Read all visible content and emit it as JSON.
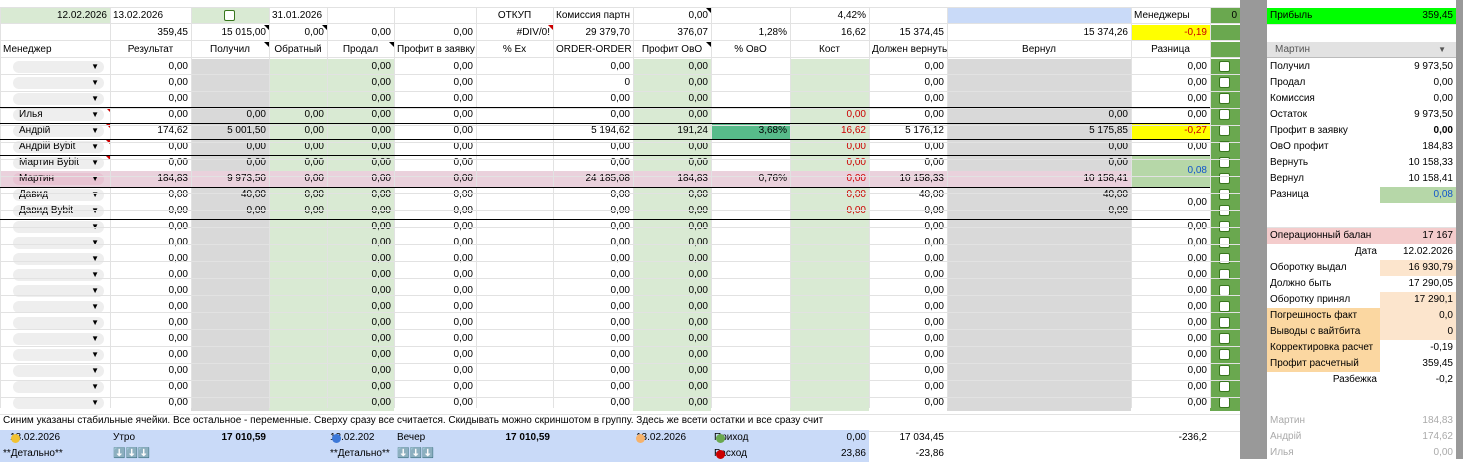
{
  "top_row": {
    "date1": "12.02.2026",
    "date2": "13.02.2026",
    "date3": "31.01.2026",
    "otkup": "ОТКУП",
    "commission_label": "Комиссия партн",
    "commission_value": "0,00",
    "percent": "4,42%",
    "managers_label": "Менеджеры",
    "managers_value": "0",
    "profit_label": "Прибыль",
    "profit_value": "359,45"
  },
  "totals_row": [
    "359,45",
    "15 015,00",
    "0,00",
    "0,00",
    "0,00",
    "#DIV/0!",
    "29 379,70",
    "376,07",
    "1,28%",
    "16,62",
    "15 374,45",
    "15 374,26",
    "-0,19"
  ],
  "headers": [
    "Менеджер",
    "Результат",
    "Получил",
    "Обратный",
    "Продал",
    "Профит в заявку",
    "% Ex",
    "ORDER-ORDER",
    "Профит ОвО",
    "% ОвО",
    "Кост",
    "Должен вернуть",
    "Вернул",
    "Разница"
  ],
  "rows": [
    {
      "name": "",
      "res": "0,00",
      "pol": "",
      "obr": "",
      "prod": "0,00",
      "prof": "0,00",
      "oo": "0,00",
      "poo": "0,00",
      "pct": "",
      "kost": "",
      "dv": "0,00",
      "vern": "",
      "raz": "0,00"
    },
    {
      "name": "",
      "res": "0,00",
      "pol": "",
      "obr": "",
      "prod": "0,00",
      "prof": "0,00",
      "oo": "0",
      "poo": "0,00",
      "pct": "",
      "kost": "",
      "dv": "0,00",
      "vern": "",
      "raz": "0,00"
    },
    {
      "name": "",
      "res": "0,00",
      "pol": "",
      "obr": "",
      "prod": "0,00",
      "prof": "0,00",
      "oo": "0,00",
      "poo": "0,00",
      "pct": "",
      "kost": "",
      "dv": "0,00",
      "vern": "",
      "raz": "0,00"
    },
    {
      "name": "Илья",
      "res": "0,00",
      "pol": "0,00",
      "obr": "0,00",
      "prod": "0,00",
      "prof": "0,00",
      "oo": "0,00",
      "poo": "0,00",
      "pct": "",
      "kost": "0,00",
      "dv": "0,00",
      "vern": "0,00",
      "raz": "0,00"
    },
    {
      "name": "Андрій",
      "res": "174,62",
      "pol": "5 001,50",
      "obr": "0,00",
      "prod": "0,00",
      "prof": "0,00",
      "oo": "5 194,62",
      "poo": "191,24",
      "pct": "3,68%",
      "kost": "16,62",
      "dv": "5 176,12",
      "vern": "5 175,85",
      "raz": "-0,27"
    },
    {
      "name": "Андрій Bybit",
      "res": "0,00",
      "pol": "0,00",
      "obr": "0,00",
      "prod": "0,00",
      "prof": "0,00",
      "oo": "0,00",
      "poo": "0,00",
      "pct": "",
      "kost": "0,00",
      "dv": "0,00",
      "vern": "0,00",
      "raz": "0,00"
    },
    {
      "name": "Мартин Bybit",
      "res": "0,00",
      "pol": "0,00",
      "obr": "0,00",
      "prod": "0,00",
      "prof": "0,00",
      "oo": "0,00",
      "poo": "0,00",
      "pct": "",
      "kost": "0,00",
      "dv": "0,00",
      "vern": "0,00",
      "raz": ""
    },
    {
      "name": "Мартин",
      "res": "184,83",
      "pol": "9 973,50",
      "obr": "0,00",
      "prod": "0,00",
      "prof": "0,00",
      "oo": "24 185,08",
      "poo": "184,83",
      "pct": "0,76%",
      "kost": "0,00",
      "dv": "10 158,33",
      "vern": "10 158,41",
      "raz": ""
    },
    {
      "name": "Давид",
      "res": "0,00",
      "pol": "40,00",
      "obr": "0,00",
      "prod": "0,00",
      "prof": "0,00",
      "oo": "0,00",
      "poo": "0,00",
      "pct": "",
      "kost": "0,00",
      "dv": "40,00",
      "vern": "40,00",
      "raz": ""
    },
    {
      "name": "Давид Bybit",
      "res": "0,00",
      "pol": "0,00",
      "obr": "0,00",
      "prod": "0,00",
      "prof": "0,00",
      "oo": "0,00",
      "poo": "0,00",
      "pct": "",
      "kost": "0,00",
      "dv": "0,00",
      "vern": "0,00",
      "raz": ""
    }
  ],
  "merged_raz": {
    "martin_bybit_martin": "0,08",
    "david": "0,00"
  },
  "empty_row": {
    "res": "0,00",
    "prod": "0,00",
    "prof": "0,00",
    "oo": "0,00",
    "poo": "0,00",
    "dv": "0,00",
    "raz": "0,00"
  },
  "note": "Синим указаны стабильные ячейки. Все остальное - переменные. Сверху сразу все считается. Скидывать можно скриншотом в группу. Здесь же всети остатки и все сразу счит",
  "bottom": {
    "date_morning": "13.02.2026",
    "morning": "Утро",
    "morning_value": "17 010,59",
    "date_evening": "13.02.202",
    "evening": "Вечер",
    "evening_value": "17 010,59",
    "date_third": "13.02.2026",
    "income": "Приход",
    "income_value": "0,00",
    "income_total": "17 034,45",
    "expense": "Расход",
    "expense_value": "23,86",
    "expense_total": "-23,86",
    "diff": "-236,2",
    "detailed1": "**Детально**",
    "detailed2": "**Детально**",
    "arrows": "⬇️⬇️⬇️"
  },
  "right_panel": {
    "selected_manager": "Мартин",
    "items": [
      {
        "label": "Получил",
        "value": "9 973,50"
      },
      {
        "label": "Продал",
        "value": "0,00"
      },
      {
        "label": "Комиссия",
        "value": "0,00"
      },
      {
        "label": "Остаток",
        "value": "9 973,50"
      },
      {
        "label": "Профит в заявку",
        "value": "0,00"
      },
      {
        "label": "ОвО профит",
        "value": "184,83"
      },
      {
        "label": "Вернуть",
        "value": "10 158,33"
      },
      {
        "label": "Вернул",
        "value": "10 158,41"
      },
      {
        "label": "Разница",
        "value": "0,08"
      }
    ],
    "balance": [
      {
        "label": "Операционный балан",
        "value": "17 167"
      },
      {
        "label": "Дата",
        "value": "12.02.2026"
      },
      {
        "label": "Оборотку выдал",
        "value": "16 930,79"
      },
      {
        "label": "Должно быть",
        "value": "17 290,05"
      },
      {
        "label": "Оборотку принял",
        "value": "17 290,1"
      },
      {
        "label": "Погрешность факт",
        "value": "0,0"
      },
      {
        "label": "Выводы с вайтбита",
        "value": "0"
      },
      {
        "label": "Корректировка расчет",
        "value": "-0,19"
      },
      {
        "label": "Профит расчетный",
        "value": "359,45"
      },
      {
        "label": "Разбежка",
        "value": "-0,2"
      }
    ],
    "faded": [
      {
        "label": "Мартин",
        "value": "184,83"
      },
      {
        "label": "Андрій",
        "value": "174,62"
      },
      {
        "label": "Илья",
        "value": "0,00"
      }
    ]
  }
}
